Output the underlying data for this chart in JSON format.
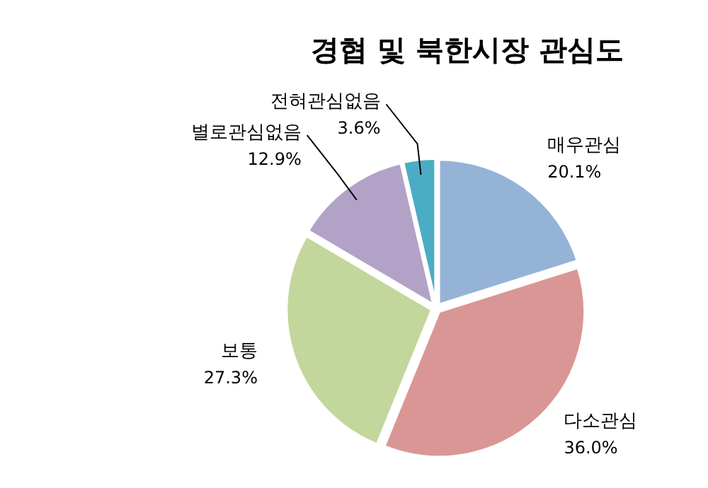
{
  "chart_data": {
    "type": "pie",
    "title": "경협 및 북한시장 관심도",
    "categories": [
      "매우관심",
      "다소관심",
      "보통",
      "별로관심없음",
      "전혀관심없음"
    ],
    "values": [
      20.1,
      36.0,
      27.3,
      12.9,
      3.6
    ],
    "colors": [
      "#95b3d7",
      "#d99694",
      "#c3d69b",
      "#b3a2c7",
      "#4bacc6"
    ],
    "value_labels": [
      "20.1%",
      "36.0%",
      "27.3%",
      "12.9%",
      "3.6%"
    ]
  }
}
